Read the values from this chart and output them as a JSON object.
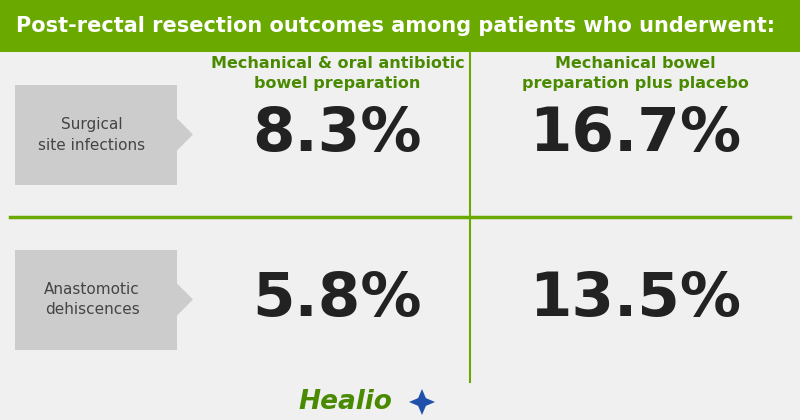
{
  "title": "Post-rectal resection outcomes among patients who underwent:",
  "title_bg_color": "#6aaa00",
  "title_text_color": "#ffffff",
  "bg_color": "#f0f0f0",
  "col1_header": "Mechanical & oral antibiotic\nbowel preparation",
  "col2_header": "Mechanical bowel\npreparation plus placebo",
  "header_color": "#4a8a00",
  "row1_label": "Surgical\nsite infections",
  "row2_label": "Anastomotic\ndehiscences",
  "label_bg_color": "#cccccc",
  "row1_val1": "8.3%",
  "row1_val2": "16.7%",
  "row2_val1": "5.8%",
  "row2_val2": "13.5%",
  "value_color": "#222222",
  "divider_color": "#6aaa00",
  "healio_text_color": "#4a8a00",
  "healio_star_blue": "#2050aa",
  "title_fontsize": 15,
  "header_fontsize": 11.5,
  "value_fontsize": 44,
  "label_fontsize": 11
}
